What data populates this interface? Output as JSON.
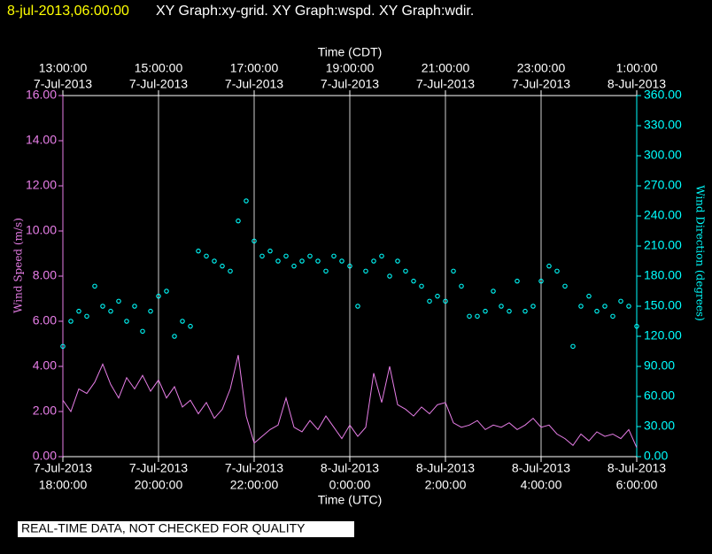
{
  "chart_data": {
    "type": "line",
    "timestamp": "8-jul-2013,06:00:00",
    "title": "XY Graph:xy-grid.  XY Graph:wspd.  XY Graph:wdir.",
    "xlabel": "Time (UTC)",
    "x2label": "Time (CDT)",
    "ylabel": "Wind Speed (m/s)",
    "y2label": "Wind Direction (degrees)",
    "note": "REAL-TIME DATA, NOT CHECKED FOR QUALITY",
    "grid": true,
    "xlim": [
      "2013-07-07T18:00",
      "2013-07-08T06:00"
    ],
    "xticks": [
      {
        "value": "2013-07-07T18:00",
        "label": "18:00:00",
        "date": "7-Jul-2013"
      },
      {
        "value": "2013-07-07T20:00",
        "label": "20:00:00",
        "date": "7-Jul-2013"
      },
      {
        "value": "2013-07-07T22:00",
        "label": "22:00:00",
        "date": "7-Jul-2013"
      },
      {
        "value": "2013-07-08T00:00",
        "label": "0:00:00",
        "date": "8-Jul-2013"
      },
      {
        "value": "2013-07-08T02:00",
        "label": "2:00:00",
        "date": "8-Jul-2013"
      },
      {
        "value": "2013-07-08T04:00",
        "label": "4:00:00",
        "date": "8-Jul-2013"
      },
      {
        "value": "2013-07-08T06:00",
        "label": "6:00:00",
        "date": "8-Jul-2013"
      }
    ],
    "x2lim": [
      "2013-07-07T13:00",
      "2013-07-08T01:00"
    ],
    "x2ticks": [
      {
        "value": "2013-07-07T13:00",
        "label": "13:00:00",
        "date": "7-Jul-2013"
      },
      {
        "value": "2013-07-07T15:00",
        "label": "15:00:00",
        "date": "7-Jul-2013"
      },
      {
        "value": "2013-07-07T17:00",
        "label": "17:00:00",
        "date": "7-Jul-2013"
      },
      {
        "value": "2013-07-07T19:00",
        "label": "19:00:00",
        "date": "7-Jul-2013"
      },
      {
        "value": "2013-07-07T21:00",
        "label": "21:00:00",
        "date": "7-Jul-2013"
      },
      {
        "value": "2013-07-07T23:00",
        "label": "23:00:00",
        "date": "7-Jul-2013"
      },
      {
        "value": "2013-07-08T01:00",
        "label": "1:00:00",
        "date": "8-Jul-2013"
      }
    ],
    "ylim": [
      0,
      16
    ],
    "yticks": [
      {
        "value": 0,
        "label": "0.00"
      },
      {
        "value": 2,
        "label": "2.00"
      },
      {
        "value": 4,
        "label": "4.00"
      },
      {
        "value": 6,
        "label": "6.00"
      },
      {
        "value": 8,
        "label": "8.00"
      },
      {
        "value": 10,
        "label": "10.00"
      },
      {
        "value": 12,
        "label": "12.00"
      },
      {
        "value": 14,
        "label": "14.00"
      },
      {
        "value": 16,
        "label": "16.00"
      }
    ],
    "y2lim": [
      0,
      360
    ],
    "y2ticks": [
      {
        "value": 0,
        "label": "0.00"
      },
      {
        "value": 30,
        "label": "30.00"
      },
      {
        "value": 60,
        "label": "60.00"
      },
      {
        "value": 90,
        "label": "90.00"
      },
      {
        "value": 120,
        "label": "120.00"
      },
      {
        "value": 150,
        "label": "150.00"
      },
      {
        "value": 180,
        "label": "180.00"
      },
      {
        "value": 210,
        "label": "210.00"
      },
      {
        "value": 240,
        "label": "240.00"
      },
      {
        "value": 270,
        "label": "270.00"
      },
      {
        "value": 300,
        "label": "300.00"
      },
      {
        "value": 330,
        "label": "330.00"
      },
      {
        "value": 360,
        "label": "360.00"
      }
    ],
    "x": [
      "2013-07-07T18:00",
      "2013-07-07T18:10",
      "2013-07-07T18:20",
      "2013-07-07T18:30",
      "2013-07-07T18:40",
      "2013-07-07T18:50",
      "2013-07-07T19:00",
      "2013-07-07T19:10",
      "2013-07-07T19:20",
      "2013-07-07T19:30",
      "2013-07-07T19:40",
      "2013-07-07T19:50",
      "2013-07-07T20:00",
      "2013-07-07T20:10",
      "2013-07-07T20:20",
      "2013-07-07T20:30",
      "2013-07-07T20:40",
      "2013-07-07T20:50",
      "2013-07-07T21:00",
      "2013-07-07T21:10",
      "2013-07-07T21:20",
      "2013-07-07T21:30",
      "2013-07-07T21:40",
      "2013-07-07T21:50",
      "2013-07-07T22:00",
      "2013-07-07T22:10",
      "2013-07-07T22:20",
      "2013-07-07T22:30",
      "2013-07-07T22:40",
      "2013-07-07T22:50",
      "2013-07-07T23:00",
      "2013-07-07T23:10",
      "2013-07-07T23:20",
      "2013-07-07T23:30",
      "2013-07-07T23:40",
      "2013-07-07T23:50",
      "2013-07-08T00:00",
      "2013-07-08T00:10",
      "2013-07-08T00:20",
      "2013-07-08T00:30",
      "2013-07-08T00:40",
      "2013-07-08T00:50",
      "2013-07-08T01:00",
      "2013-07-08T01:10",
      "2013-07-08T01:20",
      "2013-07-08T01:30",
      "2013-07-08T01:40",
      "2013-07-08T01:50",
      "2013-07-08T02:00",
      "2013-07-08T02:10",
      "2013-07-08T02:20",
      "2013-07-08T02:30",
      "2013-07-08T02:40",
      "2013-07-08T02:50",
      "2013-07-08T03:00",
      "2013-07-08T03:10",
      "2013-07-08T03:20",
      "2013-07-08T03:30",
      "2013-07-08T03:40",
      "2013-07-08T03:50",
      "2013-07-08T04:00",
      "2013-07-08T04:10",
      "2013-07-08T04:20",
      "2013-07-08T04:30",
      "2013-07-08T04:40",
      "2013-07-08T04:50",
      "2013-07-08T05:00",
      "2013-07-08T05:10",
      "2013-07-08T05:20",
      "2013-07-08T05:30",
      "2013-07-08T05:40",
      "2013-07-08T05:50",
      "2013-07-08T06:00"
    ],
    "series": [
      {
        "type": "line",
        "color": "#e87ee8",
        "axis": "y",
        "values": [
          2.5,
          2.0,
          3.0,
          2.8,
          3.3,
          4.1,
          3.2,
          2.6,
          3.5,
          3.0,
          3.6,
          2.9,
          3.4,
          2.6,
          3.1,
          2.2,
          2.5,
          1.9,
          2.4,
          1.7,
          2.1,
          3.0,
          4.5,
          1.8,
          0.6,
          0.9,
          1.2,
          1.4,
          2.6,
          1.3,
          1.1,
          1.6,
          1.2,
          1.8,
          1.3,
          0.8,
          1.4,
          0.9,
          1.3,
          3.7,
          2.4,
          4.0,
          2.3,
          2.1,
          1.8,
          2.2,
          1.9,
          2.3,
          2.4,
          1.5,
          1.3,
          1.4,
          1.6,
          1.2,
          1.4,
          1.3,
          1.5,
          1.2,
          1.4,
          1.7,
          1.3,
          1.4,
          1.0,
          0.8,
          0.5,
          1.0,
          0.7,
          1.1,
          0.9,
          1.0,
          0.8,
          1.2,
          0.4
        ]
      },
      {
        "type": "scatter",
        "color": "#00ffff",
        "axis": "y2",
        "values": [
          110,
          135,
          145,
          140,
          170,
          150,
          145,
          155,
          135,
          150,
          125,
          145,
          160,
          165,
          120,
          135,
          130,
          205,
          200,
          195,
          190,
          185,
          235,
          255,
          215,
          200,
          205,
          195,
          200,
          190,
          195,
          200,
          195,
          185,
          200,
          195,
          190,
          150,
          185,
          195,
          200,
          180,
          195,
          185,
          175,
          170,
          155,
          160,
          155,
          185,
          170,
          140,
          140,
          145,
          165,
          150,
          145,
          175,
          145,
          150,
          175,
          190,
          185,
          170,
          110,
          150,
          160,
          145,
          150,
          140,
          155,
          150,
          130
        ]
      }
    ]
  }
}
